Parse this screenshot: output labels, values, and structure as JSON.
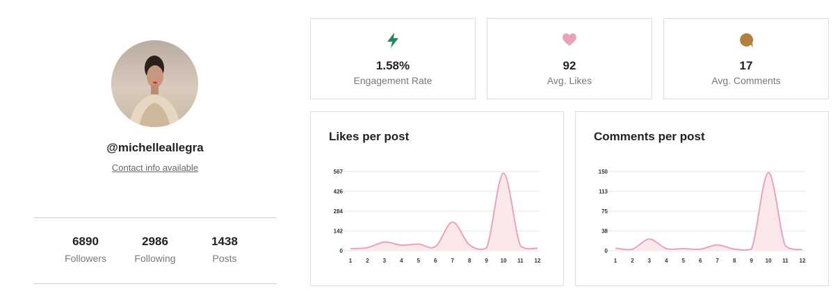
{
  "profile": {
    "username": "@michelleallegra",
    "contact_label": "Contact info available",
    "stats": [
      {
        "value": "6890",
        "label": "Followers"
      },
      {
        "value": "2986",
        "label": "Following"
      },
      {
        "value": "1438",
        "label": "Posts"
      }
    ]
  },
  "metrics": [
    {
      "icon": "lightning-icon",
      "color": "#1f8a5b",
      "value": "1.58%",
      "label": "Engagement Rate"
    },
    {
      "icon": "heart-icon",
      "color": "#e8a3b8",
      "value": "92",
      "label": "Avg. Likes"
    },
    {
      "icon": "comment-icon",
      "color": "#b08040",
      "value": "17",
      "label": "Avg. Comments"
    }
  ],
  "chart_data": [
    {
      "type": "area",
      "title": "Likes per post",
      "x": [
        1,
        2,
        3,
        4,
        5,
        6,
        7,
        8,
        9,
        10,
        11,
        12
      ],
      "y_ticks": [
        "0",
        "142",
        "284",
        "426",
        "567"
      ],
      "ylim": [
        0,
        567
      ],
      "series": [
        {
          "values": [
            15,
            22,
            62,
            40,
            48,
            30,
            205,
            42,
            20,
            555,
            35,
            18
          ]
        }
      ],
      "grid": true,
      "line_color": "#e8a3b8",
      "fill_color": "#fbe6e9"
    },
    {
      "type": "area",
      "title": "Comments per post",
      "x": [
        1,
        2,
        3,
        4,
        5,
        6,
        7,
        8,
        9,
        10,
        11,
        12
      ],
      "y_ticks": [
        "0",
        "38",
        "75",
        "113",
        "150"
      ],
      "ylim": [
        0,
        150
      ],
      "series": [
        {
          "values": [
            5,
            3,
            22,
            4,
            4,
            3,
            11,
            3,
            3,
            148,
            9,
            2
          ]
        }
      ],
      "grid": true,
      "line_color": "#e8a3b8",
      "fill_color": "#fbe6e9"
    }
  ]
}
